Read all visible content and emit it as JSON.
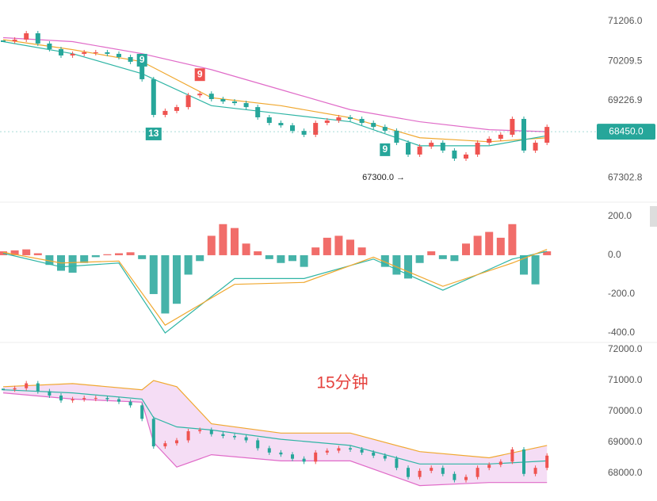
{
  "chart_data": [
    {
      "type": "candlestick",
      "values": [
        70711,
        70751,
        70909,
        70652,
        70513,
        70355,
        70395,
        70434,
        70434,
        70395,
        70315,
        70197,
        69761,
        68870,
        68970,
        69065,
        69360,
        69400,
        69265,
        69205,
        69165,
        69065,
        68810,
        68670,
        68610,
        68470,
        68375,
        68670,
        68730,
        68810,
        68770,
        68670,
        68570,
        68475,
        68175,
        67880,
        68080,
        68175,
        67980,
        67780,
        67880,
        68175,
        68275,
        68375,
        68770,
        67980,
        68175,
        68570
      ],
      "ylim": [
        66790,
        71740
      ],
      "yticks": [
        {
          "value": 71206,
          "label": "71206.0"
        },
        {
          "value": 70209.5,
          "label": "70209.5"
        },
        {
          "value": 69226.9,
          "label": "69226.9"
        },
        {
          "value": 67302.8,
          "label": "67302.8"
        }
      ],
      "up_color": "#ef5350",
      "down_color": "#26a69a",
      "series": [
        {
          "color": "#e06bc8",
          "x": [
            0,
            6,
            12,
            18,
            24,
            30,
            36,
            42,
            47
          ],
          "values": [
            70800,
            70700,
            70400,
            70000,
            69500,
            69000,
            68700,
            68500,
            68450
          ]
        },
        {
          "color": "#f0a830",
          "x": [
            0,
            6,
            12,
            18,
            24,
            30,
            36,
            42,
            47
          ],
          "values": [
            70750,
            70500,
            70200,
            69300,
            69100,
            68800,
            68300,
            68200,
            68300
          ]
        },
        {
          "color": "#2fb5a5",
          "x": [
            0,
            6,
            12,
            18,
            24,
            30,
            36,
            42,
            47
          ],
          "values": [
            70700,
            70400,
            69900,
            69100,
            68900,
            68700,
            68100,
            68100,
            68350
          ]
        }
      ],
      "markers": [
        {
          "label": "9",
          "index": 12,
          "color": "#26a69a",
          "position": "above"
        },
        {
          "label": "13",
          "index": 13,
          "color": "#26a69a",
          "position": "below"
        },
        {
          "label": "9",
          "index": 17,
          "color": "#ef5350",
          "position": "above"
        },
        {
          "label": "9",
          "index": 33,
          "color": "#26a69a",
          "position": "below"
        }
      ],
      "annotation": {
        "text": "67300.0 →",
        "index": 35,
        "value": 67300
      },
      "last_price": {
        "value": 68450,
        "label": "68450.0",
        "color": "#26a69a"
      }
    },
    {
      "type": "macd",
      "values": [
        20,
        25,
        30,
        10,
        -50,
        -80,
        -90,
        -40,
        -10,
        5,
        10,
        15,
        -20,
        -200,
        -300,
        -250,
        -100,
        -30,
        100,
        160,
        140,
        60,
        20,
        -20,
        -40,
        -30,
        -60,
        40,
        90,
        100,
        80,
        40,
        0,
        -60,
        -100,
        -120,
        -40,
        20,
        -20,
        -30,
        60,
        100,
        120,
        90,
        160,
        -100,
        -150,
        20
      ],
      "ylim": [
        -441,
        261
      ],
      "yticks": [
        {
          "value": 200,
          "label": "200.0"
        },
        {
          "value": 0,
          "label": "0.0"
        },
        {
          "value": -200,
          "label": "-200.0"
        },
        {
          "value": -400,
          "label": "-400.0"
        }
      ],
      "up_color": "#ef5350",
      "down_color": "#26a69a",
      "series": [
        {
          "color": "#2fb5a5",
          "x": [
            0,
            5,
            10,
            14,
            20,
            26,
            32,
            38,
            44,
            47
          ],
          "values": [
            10,
            -60,
            -40,
            -400,
            -120,
            -120,
            -20,
            -180,
            -20,
            20
          ]
        },
        {
          "color": "#f0a830",
          "x": [
            0,
            5,
            10,
            14,
            20,
            26,
            32,
            38,
            44,
            47
          ],
          "values": [
            15,
            -40,
            -30,
            -360,
            -150,
            -140,
            -10,
            -160,
            -40,
            30
          ]
        }
      ]
    },
    {
      "type": "bollinger",
      "title": "15分钟",
      "ylim": [
        67282,
        72231
      ],
      "yticks": [
        {
          "value": 72000,
          "label": "72000.0"
        },
        {
          "value": 71000,
          "label": "71000.0"
        },
        {
          "value": 70000,
          "label": "70000.0"
        },
        {
          "value": 69000,
          "label": "69000.0"
        },
        {
          "value": 68000,
          "label": "68000.0"
        }
      ],
      "fill": "#f3d4f3",
      "series": [
        {
          "color": "#f0a830",
          "x": [
            0,
            6,
            12,
            13,
            15,
            18,
            24,
            30,
            36,
            42,
            47
          ],
          "values": [
            70800,
            70900,
            70700,
            71000,
            70800,
            69600,
            69300,
            69300,
            68700,
            68500,
            68900
          ]
        },
        {
          "color": "#2fb5a5",
          "x": [
            0,
            6,
            12,
            13,
            15,
            18,
            24,
            30,
            36,
            42,
            47
          ],
          "values": [
            70700,
            70600,
            70400,
            69800,
            69500,
            69400,
            69100,
            68900,
            68300,
            68300,
            68400
          ]
        },
        {
          "color": "#e06bc8",
          "x": [
            0,
            6,
            12,
            13,
            15,
            18,
            24,
            30,
            36,
            42,
            47
          ],
          "values": [
            70600,
            70400,
            70300,
            69000,
            68200,
            68600,
            68400,
            68400,
            67600,
            67700,
            67700
          ]
        }
      ]
    }
  ]
}
